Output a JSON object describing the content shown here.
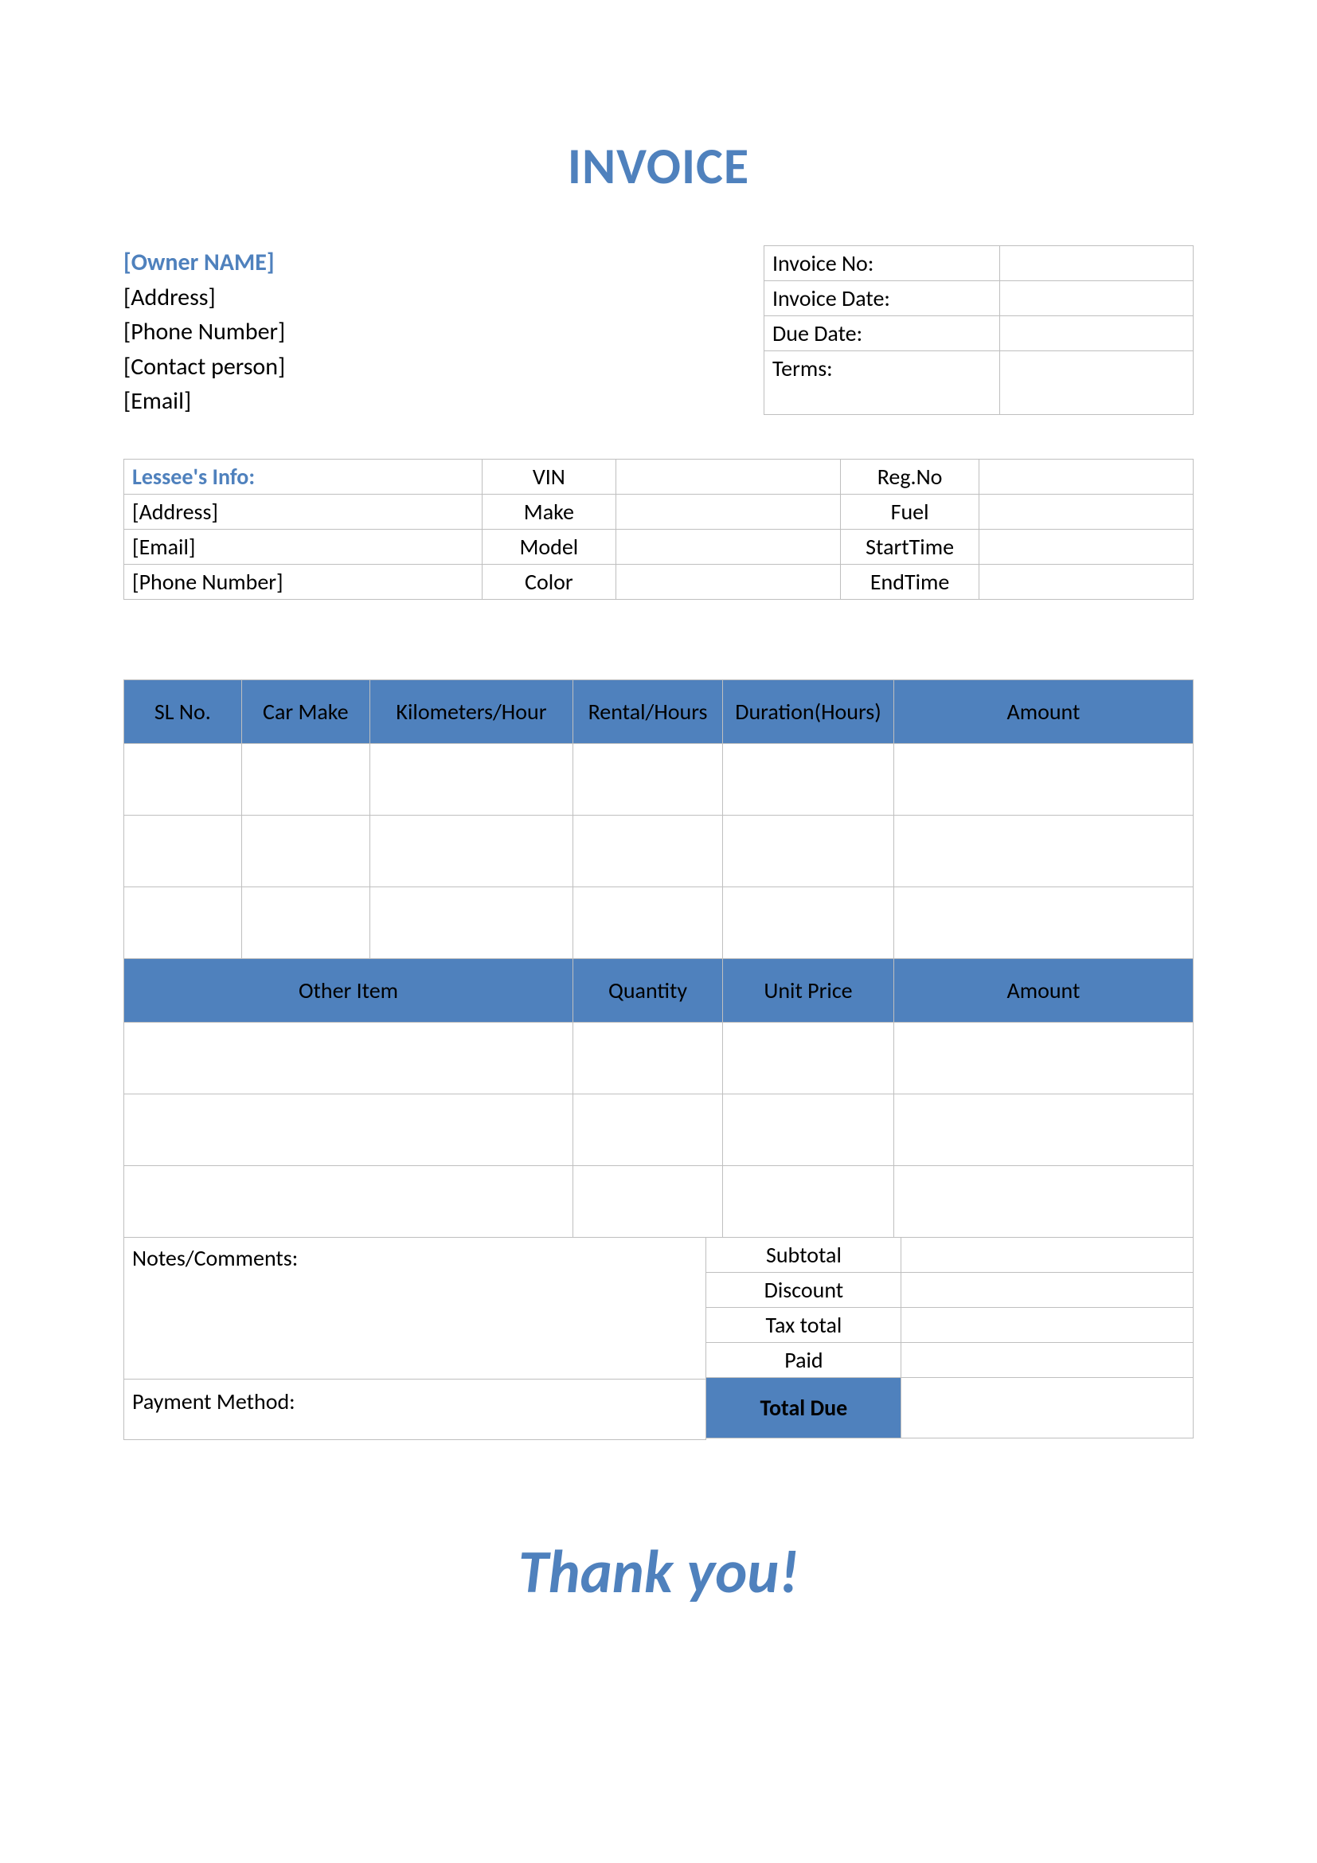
{
  "colors": {
    "accent": "#4f81bd",
    "border": "#bfbfbf",
    "background": "#ffffff",
    "text": "#000000"
  },
  "title": "INVOICE",
  "owner": {
    "name": "[Owner NAME]",
    "address": "[Address]",
    "phone": "[Phone Number]",
    "contact": "[Contact person]",
    "email": "[Email]"
  },
  "meta": {
    "invoice_no_label": "Invoice No:",
    "invoice_no": "",
    "invoice_date_label": "Invoice Date:",
    "invoice_date": "",
    "due_date_label": "Due Date:",
    "due_date": "",
    "terms_label": "Terms:",
    "terms": ""
  },
  "lessee": {
    "header": "Lessee's Info:",
    "address": "[Address]",
    "email": "[Email]",
    "phone": "[Phone Number]",
    "fields": {
      "vin_label": "VIN",
      "vin": "",
      "make_label": "Make",
      "make": "",
      "model_label": "Model",
      "model": "",
      "color_label": "Color",
      "color": "",
      "regno_label": "Reg.No",
      "regno": "",
      "fuel_label": "Fuel",
      "fuel": "",
      "start_label": "StartTime",
      "start": "",
      "end_label": "EndTime",
      "end": ""
    }
  },
  "items_section": {
    "headers": {
      "sl": "SL No.",
      "make": "Car Make",
      "km": "Kilometers/Hour",
      "rental": "Rental/Hours",
      "duration": "Duration(Hours)",
      "amount": "Amount"
    },
    "rows": [
      {
        "sl": "",
        "make": "",
        "km": "",
        "rental": "",
        "duration": "",
        "amount": ""
      },
      {
        "sl": "",
        "make": "",
        "km": "",
        "rental": "",
        "duration": "",
        "amount": ""
      },
      {
        "sl": "",
        "make": "",
        "km": "",
        "rental": "",
        "duration": "",
        "amount": ""
      }
    ]
  },
  "other_section": {
    "headers": {
      "item": "Other Item",
      "qty": "Quantity",
      "price": "Unit Price",
      "amount": "Amount"
    },
    "rows": [
      {
        "item": "",
        "qty": "",
        "price": "",
        "amount": ""
      },
      {
        "item": "",
        "qty": "",
        "price": "",
        "amount": ""
      },
      {
        "item": "",
        "qty": "",
        "price": "",
        "amount": ""
      }
    ]
  },
  "notes": {
    "label": "Notes/Comments:",
    "value": ""
  },
  "payment": {
    "label": "Payment Method:",
    "value": ""
  },
  "totals": {
    "subtotal_label": "Subtotal",
    "subtotal": "",
    "discount_label": "Discount",
    "discount": "",
    "tax_label": "Tax total",
    "tax": "",
    "paid_label": "Paid",
    "paid": "",
    "total_due_label": "Total Due",
    "total_due": ""
  },
  "footer": "Thank you!"
}
